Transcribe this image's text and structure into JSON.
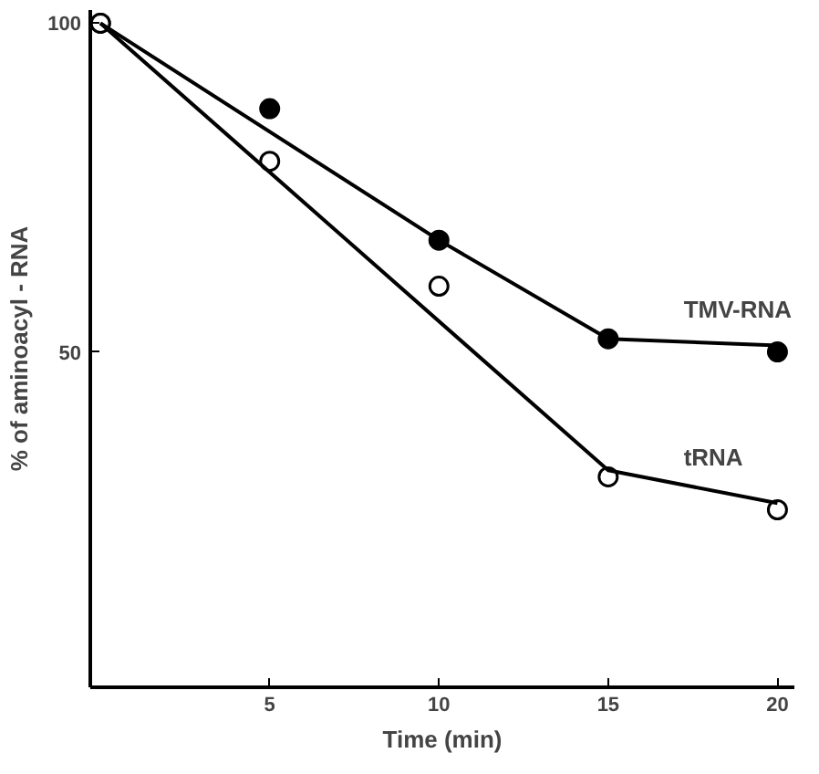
{
  "chart_data": {
    "type": "scatter",
    "xlabel": "Time (min)",
    "ylabel": "% of aminoacyl - RNA",
    "xlim": [
      -0.3,
      20.5
    ],
    "ylim": [
      -1,
      102
    ],
    "xticks": [
      5,
      10,
      15,
      20
    ],
    "yticks": [
      50,
      100
    ],
    "grid": false,
    "marker": "circle",
    "series": [
      {
        "name": "TMV-RNA",
        "color": "#000000",
        "x": [
          0,
          5,
          10,
          15,
          20
        ],
        "values": [
          100,
          87,
          67,
          52,
          50
        ]
      },
      {
        "name": "tRNA",
        "color": "#ffffff",
        "x": [
          0,
          5,
          10,
          15,
          20
        ],
        "values": [
          100,
          79,
          60,
          31,
          26
        ]
      },
      {
        "type": "line",
        "marker": "none",
        "color": "#000000",
        "x": [
          0,
          10,
          15,
          20
        ],
        "values": [
          100,
          67,
          52,
          51
        ]
      },
      {
        "type": "line",
        "marker": "none",
        "color": "#000000",
        "x": [
          0,
          15,
          20
        ],
        "values": [
          100,
          32,
          27
        ]
      }
    ]
  }
}
